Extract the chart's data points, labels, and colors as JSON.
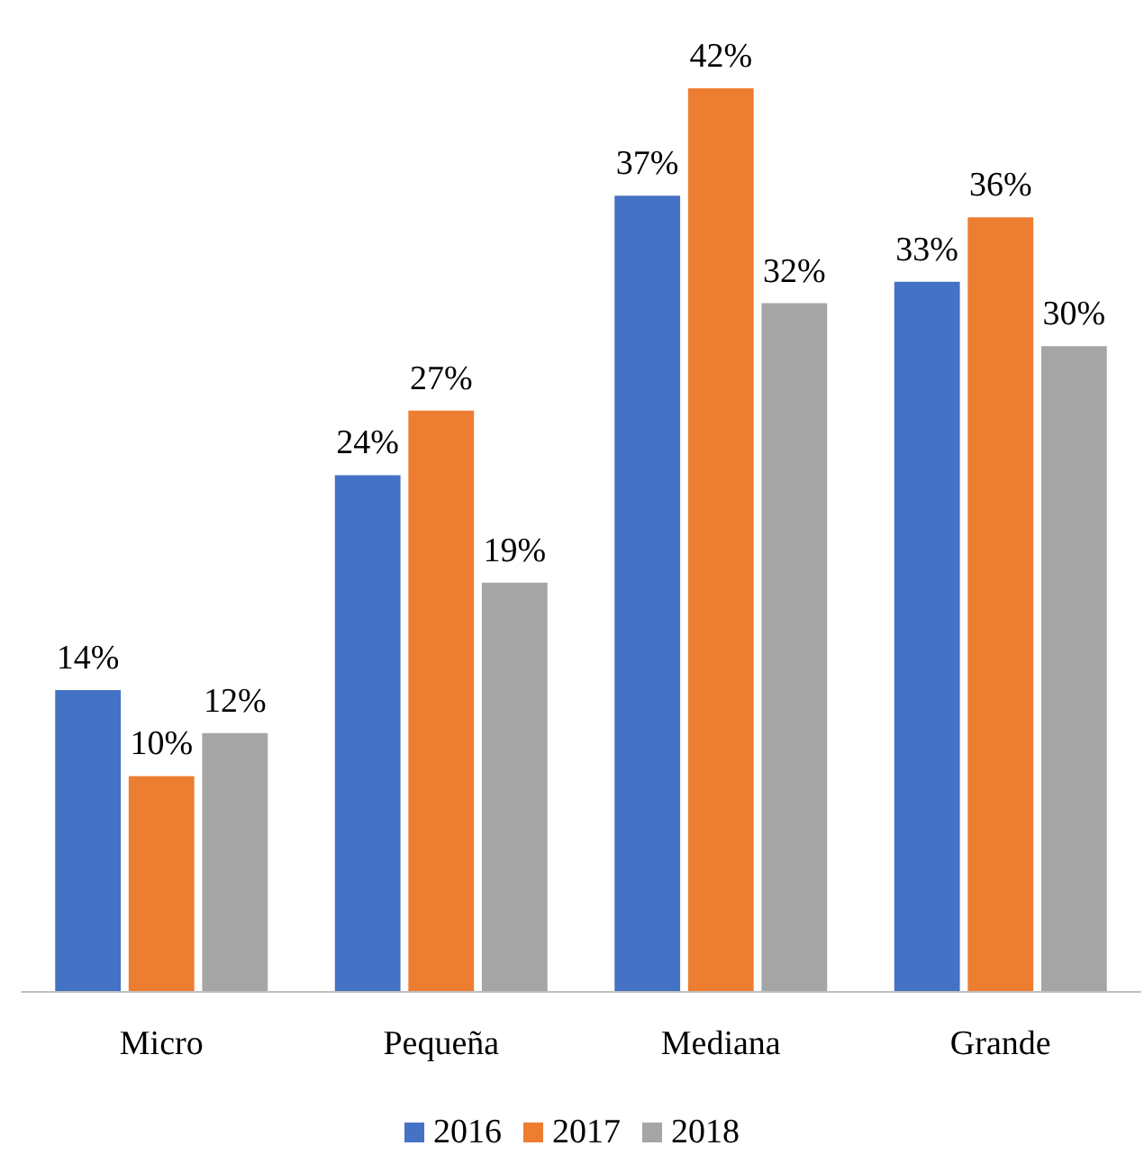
{
  "chart_data": {
    "type": "bar",
    "categories": [
      "Micro",
      "Pequeña",
      "Mediana",
      "Grande"
    ],
    "series": [
      {
        "name": "2016",
        "color": "#4472c4",
        "values": [
          14,
          24,
          37,
          33
        ],
        "value_labels": [
          "14%",
          "24%",
          "37%",
          "33%"
        ]
      },
      {
        "name": "2017",
        "color": "#ed7d31",
        "values": [
          10,
          27,
          42,
          36
        ],
        "value_labels": [
          "10%",
          "27%",
          "42%",
          "36%"
        ]
      },
      {
        "name": "2018",
        "color": "#a5a5a5",
        "values": [
          12,
          19,
          32,
          30
        ],
        "value_labels": [
          "12%",
          "19%",
          "32%",
          "30%"
        ]
      }
    ],
    "legend": "bottom"
  }
}
